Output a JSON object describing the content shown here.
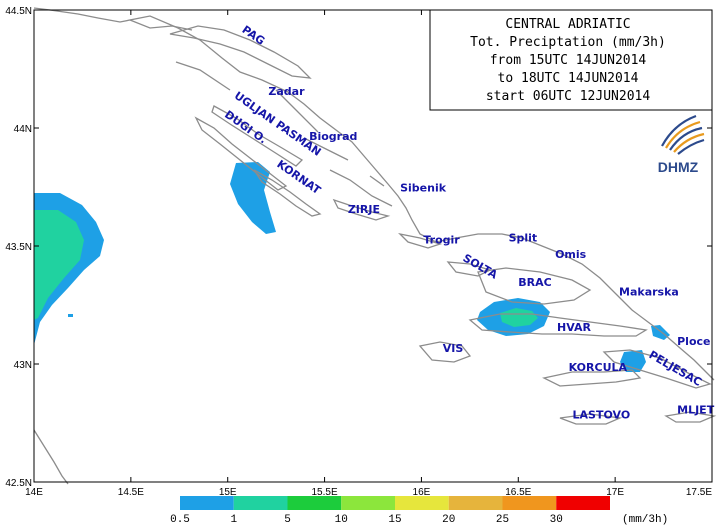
{
  "title_box": {
    "lines": [
      "CENTRAL ADRIATIC",
      "Tot. Preciptation (mm/3h)",
      "from 15UTC 14JUN2014",
      "to 18UTC 14JUN2014",
      "start 06UTC 12JUN2014"
    ]
  },
  "logo": {
    "text": "DHMZ",
    "icon": "dhmz-swirl-logo"
  },
  "axes": {
    "lon_range": [
      14.0,
      17.5
    ],
    "lat_range": [
      42.5,
      44.5
    ],
    "lon_labels": [
      {
        "lon": 14.0,
        "text": "14E"
      },
      {
        "lon": 14.5,
        "text": "14.5E"
      },
      {
        "lon": 15.0,
        "text": "15E"
      },
      {
        "lon": 15.5,
        "text": "15.5E"
      },
      {
        "lon": 16.0,
        "text": "16E"
      },
      {
        "lon": 16.5,
        "text": "16.5E"
      },
      {
        "lon": 17.0,
        "text": "17E"
      },
      {
        "lon": 17.5,
        "text": "17.5E"
      }
    ],
    "lat_labels": [
      {
        "lat": 44.5,
        "text": "44.5N"
      },
      {
        "lat": 44.0,
        "text": "44N"
      },
      {
        "lat": 43.5,
        "text": "43.5N"
      },
      {
        "lat": 43.0,
        "text": "43N"
      },
      {
        "lat": 42.5,
        "text": "42.5N"
      }
    ]
  },
  "places": [
    {
      "name": "PAG",
      "lon": 15.07,
      "lat": 44.41,
      "rotate": 35
    },
    {
      "name": "Zadar",
      "lon": 15.21,
      "lat": 44.14,
      "rotate": 0
    },
    {
      "name": "UGLJAN PASMAN",
      "lon": 15.03,
      "lat": 44.13,
      "rotate": 35
    },
    {
      "name": "Biograd",
      "lon": 15.42,
      "lat": 43.95,
      "rotate": 0
    },
    {
      "name": "DUGI O.",
      "lon": 14.98,
      "lat": 44.05,
      "rotate": 35
    },
    {
      "name": "KORNAT",
      "lon": 15.25,
      "lat": 43.84,
      "rotate": 35
    },
    {
      "name": "Sibenik",
      "lon": 15.89,
      "lat": 43.73,
      "rotate": 0
    },
    {
      "name": "ZIRJE",
      "lon": 15.62,
      "lat": 43.64,
      "rotate": 0
    },
    {
      "name": "Trogir",
      "lon": 16.01,
      "lat": 43.51,
      "rotate": 0
    },
    {
      "name": "Split",
      "lon": 16.45,
      "lat": 43.52,
      "rotate": 0
    },
    {
      "name": "Omis",
      "lon": 16.69,
      "lat": 43.45,
      "rotate": 0
    },
    {
      "name": "SOLTA",
      "lon": 16.21,
      "lat": 43.44,
      "rotate": 30
    },
    {
      "name": "BRAC",
      "lon": 16.5,
      "lat": 43.33,
      "rotate": 0
    },
    {
      "name": "Makarska",
      "lon": 17.02,
      "lat": 43.29,
      "rotate": 0
    },
    {
      "name": "HVAR",
      "lon": 16.7,
      "lat": 43.14,
      "rotate": 0
    },
    {
      "name": "Ploce",
      "lon": 17.32,
      "lat": 43.08,
      "rotate": 0
    },
    {
      "name": "VIS",
      "lon": 16.11,
      "lat": 43.05,
      "rotate": 0
    },
    {
      "name": "PELJESAC",
      "lon": 17.17,
      "lat": 43.03,
      "rotate": 30
    },
    {
      "name": "KORCULA",
      "lon": 16.76,
      "lat": 42.97,
      "rotate": 0
    },
    {
      "name": "LASTOVO",
      "lon": 16.78,
      "lat": 42.77,
      "rotate": 0
    },
    {
      "name": "MLJET",
      "lon": 17.32,
      "lat": 42.79,
      "rotate": 0
    }
  ],
  "legend": {
    "unit": "(mm/3h)",
    "bins": [
      {
        "from": 0.5,
        "to": 1,
        "color": "#1ea0e6"
      },
      {
        "from": 1,
        "to": 5,
        "color": "#20d2a0"
      },
      {
        "from": 5,
        "to": 10,
        "color": "#1ccc3c"
      },
      {
        "from": 10,
        "to": 15,
        "color": "#8ce63c"
      },
      {
        "from": 15,
        "to": 20,
        "color": "#e6e63c"
      },
      {
        "from": 20,
        "to": 25,
        "color": "#e6b43c"
      },
      {
        "from": 25,
        "to": 30,
        "color": "#f0961e"
      },
      {
        "from": 30,
        "to": null,
        "color": "#f00000"
      }
    ],
    "tick_labels": [
      "0.5",
      "1",
      "5",
      "10",
      "15",
      "20",
      "25",
      "30"
    ]
  },
  "colors": {
    "coastline": "#8c8c8c",
    "place_label": "#1515a8",
    "frame": "#000000"
  }
}
